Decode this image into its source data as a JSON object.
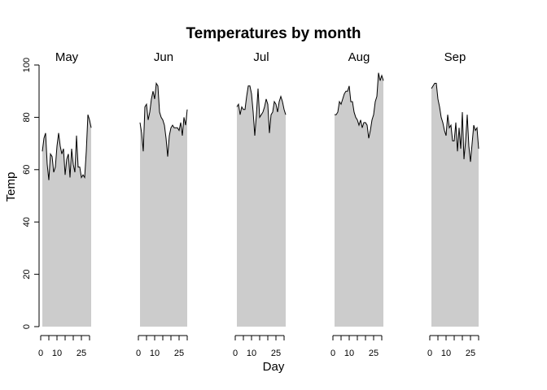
{
  "chart_data": {
    "type": "area",
    "title": "Temperatures by month",
    "xlabel": "Day",
    "ylabel": "Temp",
    "ylim": [
      0,
      100
    ],
    "y_ticks": [
      0,
      20,
      40,
      60,
      80,
      100
    ],
    "x_tick_labels": [
      "0",
      "10",
      "25"
    ],
    "x_ticks_minor_step": 5,
    "fill_color": "#cccccc",
    "line_color": "#000000",
    "panels": [
      {
        "name": "May",
        "x": [
          1,
          2,
          3,
          4,
          5,
          6,
          7,
          8,
          9,
          10,
          11,
          12,
          13,
          14,
          15,
          16,
          17,
          18,
          19,
          20,
          21,
          22,
          23,
          24,
          25,
          26,
          27,
          28,
          29,
          30,
          31
        ],
        "values": [
          67,
          72,
          74,
          62,
          56,
          66,
          65,
          59,
          61,
          69,
          74,
          69,
          66,
          68,
          58,
          64,
          66,
          57,
          68,
          62,
          59,
          73,
          61,
          61,
          57,
          58,
          57,
          67,
          81,
          79,
          76
        ]
      },
      {
        "name": "Jun",
        "x": [
          1,
          2,
          3,
          4,
          5,
          6,
          7,
          8,
          9,
          10,
          11,
          12,
          13,
          14,
          15,
          16,
          17,
          18,
          19,
          20,
          21,
          22,
          23,
          24,
          25,
          26,
          27,
          28,
          29,
          30
        ],
        "values": [
          78,
          74,
          67,
          84,
          85,
          79,
          82,
          87,
          90,
          87,
          93,
          92,
          82,
          80,
          79,
          77,
          72,
          65,
          73,
          76,
          77,
          76,
          76,
          76,
          75,
          78,
          73,
          80,
          77,
          83
        ]
      },
      {
        "name": "Jul",
        "x": [
          1,
          2,
          3,
          4,
          5,
          6,
          7,
          8,
          9,
          10,
          11,
          12,
          13,
          14,
          15,
          16,
          17,
          18,
          19,
          20,
          21,
          22,
          23,
          24,
          25,
          26,
          27,
          28,
          29,
          30,
          31
        ],
        "values": [
          84,
          85,
          81,
          84,
          83,
          83,
          88,
          92,
          92,
          89,
          82,
          73,
          81,
          91,
          80,
          81,
          82,
          84,
          87,
          85,
          74,
          81,
          82,
          86,
          85,
          82,
          86,
          88,
          86,
          83,
          81
        ]
      },
      {
        "name": "Aug",
        "x": [
          1,
          2,
          3,
          4,
          5,
          6,
          7,
          8,
          9,
          10,
          11,
          12,
          13,
          14,
          15,
          16,
          17,
          18,
          19,
          20,
          21,
          22,
          23,
          24,
          25,
          26,
          27,
          28,
          29,
          30,
          31
        ],
        "values": [
          81,
          81,
          82,
          86,
          85,
          87,
          89,
          90,
          90,
          92,
          86,
          86,
          82,
          80,
          79,
          77,
          79,
          76,
          78,
          78,
          77,
          72,
          75,
          79,
          81,
          86,
          88,
          97,
          94,
          96,
          94
        ]
      },
      {
        "name": "Sep",
        "x": [
          1,
          2,
          3,
          4,
          5,
          6,
          7,
          8,
          9,
          10,
          11,
          12,
          13,
          14,
          15,
          16,
          17,
          18,
          19,
          20,
          21,
          22,
          23,
          24,
          25,
          26,
          27,
          28,
          29,
          30
        ],
        "values": [
          91,
          92,
          93,
          93,
          87,
          84,
          80,
          78,
          75,
          73,
          81,
          76,
          77,
          71,
          71,
          78,
          67,
          76,
          68,
          82,
          64,
          71,
          81,
          69,
          63,
          70,
          77,
          75,
          76,
          68
        ]
      }
    ]
  }
}
